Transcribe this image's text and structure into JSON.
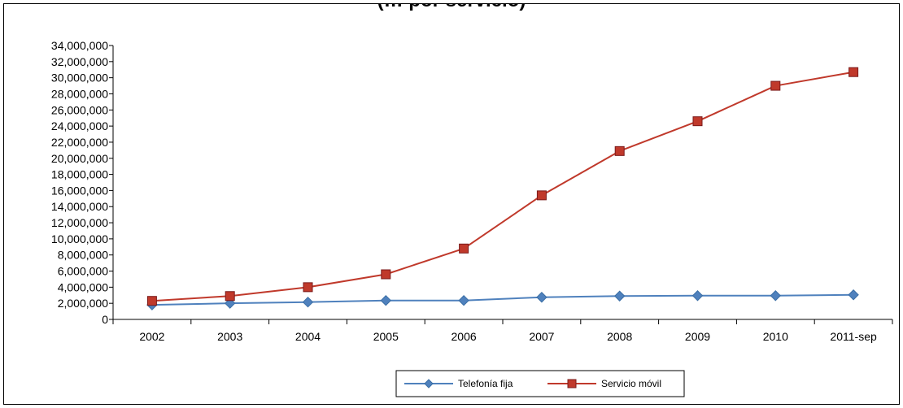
{
  "chart_data": {
    "type": "line",
    "title": "(… por servicio)",
    "categories": [
      "2002",
      "2003",
      "2004",
      "2005",
      "2006",
      "2007",
      "2008",
      "2009",
      "2010",
      "2011-sep"
    ],
    "y_tick_labels": [
      "0",
      "2,000,000",
      "4,000,000",
      "6,000,000",
      "8,000,000",
      "10,000,000",
      "12,000,000",
      "14,000,000",
      "16,000,000",
      "18,000,000",
      "20,000,000",
      "22,000,000",
      "24,000,000",
      "26,000,000",
      "28,000,000",
      "30,000,000",
      "32,000,000",
      "34,000,000"
    ],
    "ylim": [
      0,
      34000000
    ],
    "grid": false,
    "legend_position": "bottom",
    "series": [
      {
        "name": "Telefonía fija",
        "marker": "diamond",
        "color": "#4F81BD",
        "values": [
          1800000,
          2000000,
          2150000,
          2350000,
          2350000,
          2750000,
          2900000,
          2950000,
          2950000,
          3050000
        ]
      },
      {
        "name": "Servicio móvil",
        "marker": "square",
        "color": "#C0392B",
        "values": [
          2300000,
          2900000,
          4000000,
          5600000,
          8800000,
          15400000,
          20900000,
          24600000,
          29000000,
          30700000
        ]
      }
    ]
  }
}
